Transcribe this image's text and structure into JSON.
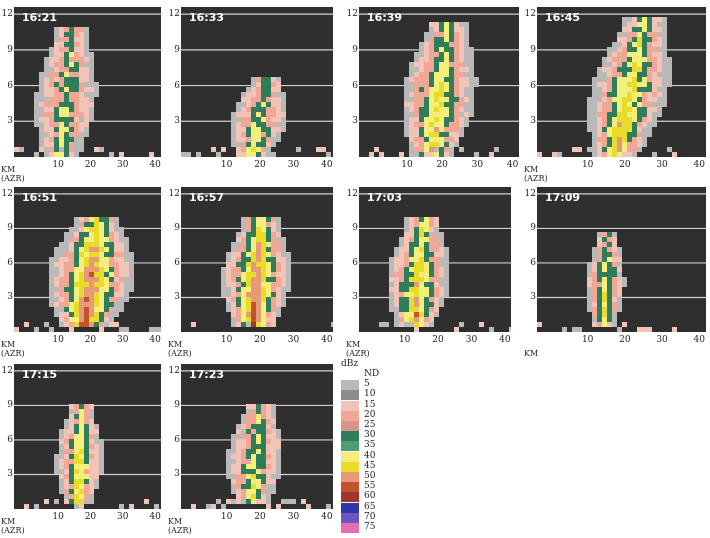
{
  "panels": [
    {
      "time": "16:21",
      "x_ticks": [
        "10",
        "20",
        "30",
        "40"
      ],
      "y_ticks": [
        "12",
        "9",
        "6",
        "3"
      ],
      "km": "KM",
      "azr": "(AZR)"
    },
    {
      "time": "16:33",
      "x_ticks": [
        "10",
        "20",
        "30",
        "40"
      ],
      "y_ticks": [
        "12",
        "9",
        "6",
        "3"
      ],
      "km": "",
      "azr": ""
    },
    {
      "time": "16:39",
      "x_ticks": [
        "10",
        "20",
        "30",
        "40"
      ],
      "y_ticks": [
        "12",
        "9",
        "6",
        "3"
      ],
      "km": "",
      "azr": ""
    },
    {
      "time": "16:45",
      "x_ticks": [
        "10",
        "20",
        "30",
        "40"
      ],
      "y_ticks": [
        "12",
        "9",
        "6",
        "3"
      ],
      "km": "KM",
      "azr": "(AZR)"
    },
    {
      "time": "16:51",
      "x_ticks": [
        "10",
        "20",
        "30",
        "40"
      ],
      "y_ticks": [
        "12",
        "9",
        "6",
        "3"
      ],
      "km": "KM",
      "azr": "(AZR)"
    },
    {
      "time": "16:57",
      "x_ticks": [
        "10",
        "20",
        "30",
        "40"
      ],
      "y_ticks": [
        "12",
        "9",
        "6",
        "3"
      ],
      "km": "KM",
      "azr": "(AZR)"
    },
    {
      "time": "17:03",
      "x_ticks": [
        "10",
        "20",
        "30",
        "40"
      ],
      "y_ticks": [
        "12",
        "9",
        "6",
        "3"
      ],
      "km": "KM",
      "azr": "(AZR)"
    },
    {
      "time": "17:09",
      "x_ticks": [
        "10",
        "20",
        "30",
        "40"
      ],
      "y_ticks": [
        "12",
        "9",
        "6",
        "3"
      ],
      "km": "KM",
      "azr": ""
    },
    {
      "time": "17:15",
      "x_ticks": [
        "10",
        "20",
        "30",
        "40"
      ],
      "y_ticks": [
        "12",
        "9",
        "6",
        "3"
      ],
      "km": "KM",
      "azr": "(AZR)"
    },
    {
      "time": "17:23",
      "x_ticks": [
        "10",
        "20",
        "30",
        "40"
      ],
      "y_ticks": [
        "12",
        "9",
        "6",
        "3"
      ],
      "km": "KM",
      "azr": "(AZR)"
    }
  ],
  "legend": {
    "title": "dBz",
    "entries": [
      {
        "label": "ND",
        "color": "#ffffff"
      },
      {
        "label": "5",
        "color": "#b9b9b9"
      },
      {
        "label": "10",
        "color": "#8c8c8c"
      },
      {
        "label": "15",
        "color": "#f4c3b7"
      },
      {
        "label": "20",
        "color": "#f0a796"
      },
      {
        "label": "25",
        "color": "#d8958b"
      },
      {
        "label": "30",
        "color": "#2f7d5a"
      },
      {
        "label": "35",
        "color": "#4aa071"
      },
      {
        "label": "40",
        "color": "#f3ef7a"
      },
      {
        "label": "45",
        "color": "#e8db2a"
      },
      {
        "label": "50",
        "color": "#e69a78"
      },
      {
        "label": "55",
        "color": "#c2512e"
      },
      {
        "label": "60",
        "color": "#a3342c"
      },
      {
        "label": "65",
        "color": "#3035a8"
      },
      {
        "label": "70",
        "color": "#6a57c2"
      },
      {
        "label": "75",
        "color": "#e46eb4"
      }
    ]
  }
}
